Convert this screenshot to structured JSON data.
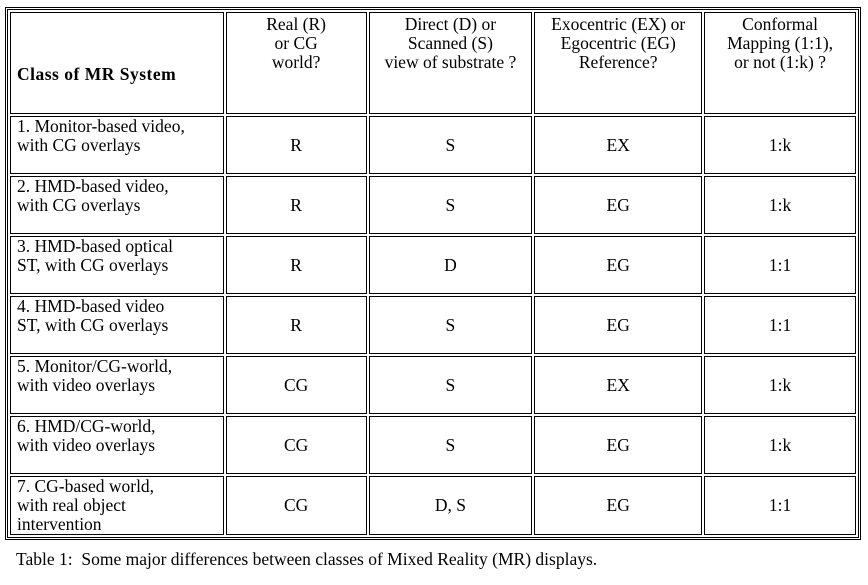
{
  "table": {
    "header": [
      "Class of MR System",
      "Real (R)\nor CG\nworld?",
      "Direct (D) or\nScanned (S)\nview of substrate ?",
      "Exocentric (EX) or\nEgocentric (EG)\nReference?",
      "Conformal\nMapping (1:1),\nor not (1:k) ?"
    ],
    "rows": [
      [
        "1. Monitor-based video,\nwith CG overlays",
        "R",
        "S",
        "EX",
        "1:k"
      ],
      [
        "2. HMD-based video,\nwith CG overlays",
        "R",
        "S",
        "EG",
        "1:k"
      ],
      [
        "3. HMD-based optical\nST, with CG overlays",
        "R",
        "D",
        "EG",
        "1:1"
      ],
      [
        "4. HMD-based video\nST, with CG overlays",
        "R",
        "S",
        "EG",
        "1:1"
      ],
      [
        "5. Monitor/CG-world,\nwith video overlays",
        "CG",
        "S",
        "EX",
        "1:k"
      ],
      [
        "6. HMD/CG-world,\nwith video overlays",
        "CG",
        "S",
        "EG",
        "1:k"
      ],
      [
        "7. CG-based world,\nwith real object\nintervention",
        "CG",
        "D, S",
        "EG",
        "1:1"
      ]
    ]
  },
  "caption": "Table 1:  Some major differences between classes of Mixed Reality (MR) displays."
}
